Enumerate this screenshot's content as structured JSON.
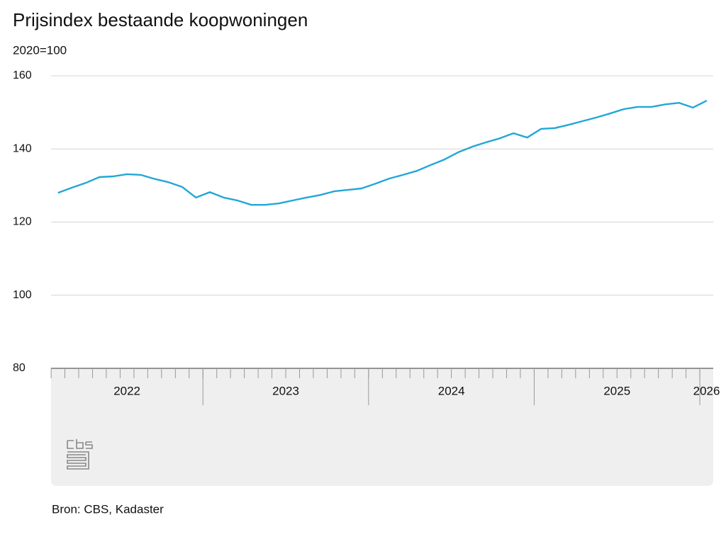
{
  "chart_data": {
    "type": "line",
    "title": "Prijsindex bestaande koopwoningen",
    "subtitle": "2020=100",
    "source": "Bron: CBS, Kadaster",
    "x": [
      2022.125,
      2022.208,
      2022.292,
      2022.375,
      2022.458,
      2022.542,
      2022.625,
      2022.708,
      2022.792,
      2022.875,
      2022.958,
      2023.042,
      2023.125,
      2023.208,
      2023.292,
      2023.375,
      2023.458,
      2023.542,
      2023.625,
      2023.708,
      2023.792,
      2023.875,
      2023.958,
      2024.042,
      2024.125,
      2024.208,
      2024.292,
      2024.375,
      2024.458,
      2024.542,
      2024.625,
      2024.708,
      2024.792,
      2024.875,
      2024.958,
      2025.042,
      2025.125,
      2025.208,
      2025.292,
      2025.375,
      2025.458,
      2025.542,
      2025.625,
      2025.708,
      2025.792,
      2025.875,
      2025.958,
      2026.042
    ],
    "series": [
      {
        "name": "Prijsindex",
        "color": "#22a7d6",
        "values": [
          128.0,
          129.4,
          130.7,
          132.3,
          132.5,
          133.1,
          132.9,
          131.8,
          130.9,
          129.6,
          126.7,
          128.2,
          126.7,
          125.9,
          124.7,
          124.7,
          125.1,
          125.9,
          126.7,
          127.4,
          128.4,
          128.8,
          129.2,
          130.5,
          131.9,
          132.9,
          134.0,
          135.6,
          137.1,
          139.1,
          140.6,
          141.8,
          142.9,
          144.3,
          143.1,
          145.5,
          145.7,
          146.6,
          147.6,
          148.6,
          149.7,
          150.9,
          151.5,
          151.5,
          152.2,
          152.6,
          151.3,
          153.2
        ]
      }
    ],
    "xlim": [
      2022.083,
      2026.081
    ],
    "xticks": [
      2022,
      2023,
      2024,
      2025,
      2026
    ],
    "ylim": [
      80,
      160
    ],
    "yticks": [
      80,
      100,
      120,
      140,
      160
    ],
    "grid": true
  }
}
